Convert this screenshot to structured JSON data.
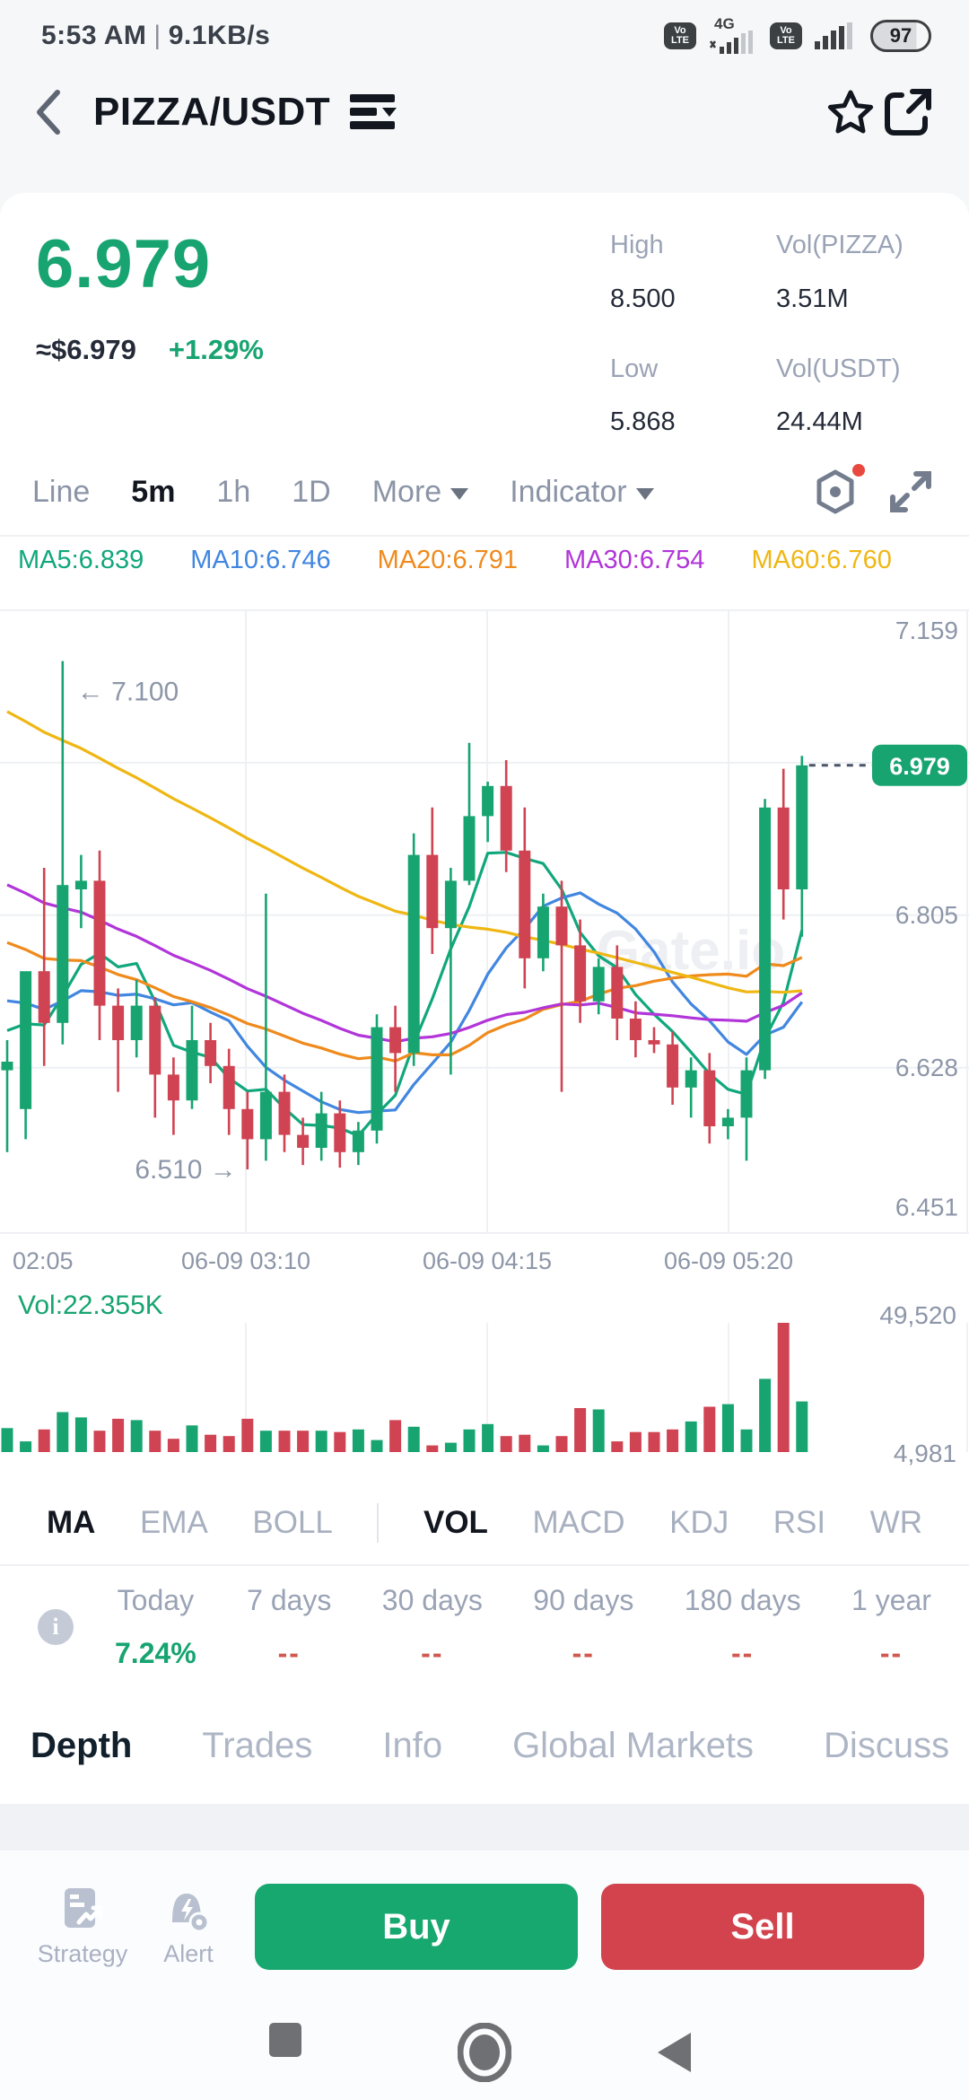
{
  "status_bar": {
    "time": "5:53 AM",
    "separator": "|",
    "net_speed": "9.1KB/s",
    "volte_line1": "Vo",
    "volte_line2": "LTE",
    "net_type": "4G",
    "battery": "97"
  },
  "header": {
    "title": "PIZZA/USDT"
  },
  "ticker": {
    "price": "6.979",
    "fiat": "≈$6.979",
    "change": "+1.29%",
    "high_label": "High",
    "high": "8.500",
    "vol_base_label": "Vol(PIZZA)",
    "vol_base": "3.51M",
    "low_label": "Low",
    "low": "5.868",
    "vol_quote_label": "Vol(USDT)",
    "vol_quote": "24.44M"
  },
  "toolbar": {
    "tabs": [
      "Line",
      "5m",
      "1h",
      "1D"
    ],
    "active_tab": "5m",
    "more_label": "More",
    "indicator_label": "Indicator"
  },
  "ma_row": [
    {
      "label": "MA5:6.839",
      "color": "#11a77c"
    },
    {
      "label": "MA10:6.746",
      "color": "#4186e0"
    },
    {
      "label": "MA20:6.791",
      "color": "#ef8a1c"
    },
    {
      "label": "MA30:6.754",
      "color": "#b135d8"
    },
    {
      "label": "MA60:6.760",
      "color": "#efb714"
    }
  ],
  "chart_data": {
    "type": "candlestick",
    "title": "PIZZA/USDT 5m candles with MA5/10/20/30/60 and volume",
    "y_ticks": [
      {
        "label": "7.159",
        "price": 7.159,
        "dy": 32
      },
      {
        "label": "6.805",
        "price": 6.805,
        "dy": 9
      },
      {
        "label": "6.628",
        "price": 6.628,
        "dy": 9
      },
      {
        "label": "6.451",
        "price": 6.451,
        "dy": -5
      }
    ],
    "grid_prices": [
      7.159,
      6.982,
      6.805,
      6.628
    ],
    "x_ticks": [
      {
        "label": "02:05"
      },
      {
        "label": "06-09 03:10"
      },
      {
        "label": "06-09 04:15"
      },
      {
        "label": "06-09 05:20"
      }
    ],
    "price_range": {
      "top": 7.159,
      "bottom": 6.436
    },
    "last_price": {
      "label": "6.979",
      "price": 6.979
    },
    "annotations": {
      "high": {
        "label": "← 7.100",
        "price": 7.1,
        "candle_index": 3
      },
      "low": {
        "label": "6.510 →",
        "price": 6.51,
        "candle_index": 13
      }
    },
    "watermark": "Gate.io",
    "colors": {
      "up": "#17a471",
      "down": "#cf4352",
      "ma5": "#11a77c",
      "ma10": "#4186e0",
      "ma20": "#ef8a1c",
      "ma30": "#b135d8",
      "ma60": "#efb714"
    },
    "ma_periods": [
      5,
      10,
      20,
      30,
      60
    ],
    "candles": [
      [
        6.625,
        6.66,
        6.53,
        6.635
      ],
      [
        6.58,
        6.7,
        6.545,
        6.74
      ],
      [
        6.74,
        6.86,
        6.63,
        6.68
      ],
      [
        6.68,
        7.1,
        6.655,
        6.84
      ],
      [
        6.835,
        6.875,
        6.79,
        6.845
      ],
      [
        6.845,
        6.88,
        6.66,
        6.7
      ],
      [
        6.7,
        6.72,
        6.6,
        6.66
      ],
      [
        6.66,
        6.73,
        6.64,
        6.7
      ],
      [
        6.7,
        6.71,
        6.57,
        6.62
      ],
      [
        6.62,
        6.64,
        6.55,
        6.59
      ],
      [
        6.59,
        6.7,
        6.58,
        6.66
      ],
      [
        6.66,
        6.68,
        6.61,
        6.63
      ],
      [
        6.63,
        6.65,
        6.55,
        6.58
      ],
      [
        6.58,
        6.6,
        6.51,
        6.545
      ],
      [
        6.545,
        6.83,
        6.52,
        6.6
      ],
      [
        6.6,
        6.62,
        6.53,
        6.55
      ],
      [
        6.55,
        6.57,
        6.515,
        6.535
      ],
      [
        6.535,
        6.6,
        6.52,
        6.575
      ],
      [
        6.575,
        6.59,
        6.512,
        6.53
      ],
      [
        6.53,
        6.565,
        6.515,
        6.555
      ],
      [
        6.555,
        6.69,
        6.54,
        6.675
      ],
      [
        6.675,
        6.7,
        6.6,
        6.645
      ],
      [
        6.645,
        6.9,
        6.63,
        6.875
      ],
      [
        6.875,
        6.93,
        6.76,
        6.79
      ],
      [
        6.79,
        6.86,
        6.62,
        6.845
      ],
      [
        6.845,
        7.005,
        6.84,
        6.92
      ],
      [
        6.92,
        6.96,
        6.89,
        6.955
      ],
      [
        6.955,
        6.985,
        6.855,
        6.88
      ],
      [
        6.88,
        6.93,
        6.72,
        6.755
      ],
      [
        6.755,
        6.83,
        6.74,
        6.815
      ],
      [
        6.815,
        6.845,
        6.6,
        6.77
      ],
      [
        6.77,
        6.8,
        6.68,
        6.705
      ],
      [
        6.705,
        6.755,
        6.69,
        6.745
      ],
      [
        6.745,
        6.77,
        6.66,
        6.685
      ],
      [
        6.685,
        6.705,
        6.64,
        6.66
      ],
      [
        6.66,
        6.675,
        6.645,
        6.655
      ],
      [
        6.655,
        6.67,
        6.585,
        6.605
      ],
      [
        6.605,
        6.64,
        6.57,
        6.625
      ],
      [
        6.625,
        6.645,
        6.54,
        6.56
      ],
      [
        6.56,
        6.58,
        6.545,
        6.57
      ],
      [
        6.57,
        6.64,
        6.52,
        6.625
      ],
      [
        6.625,
        6.94,
        6.615,
        6.93
      ],
      [
        6.93,
        6.975,
        6.8,
        6.835
      ],
      [
        6.835,
        6.99,
        6.78,
        6.979
      ]
    ],
    "volume": {
      "label": "Vol:22.355K",
      "axis_max": "49,520",
      "axis_min": "4,981",
      "max_value": 49520,
      "rel": [
        0.18,
        0.08,
        0.17,
        0.3,
        0.26,
        0.16,
        0.25,
        0.24,
        0.16,
        0.1,
        0.2,
        0.13,
        0.12,
        0.25,
        0.16,
        0.16,
        0.16,
        0.16,
        0.15,
        0.17,
        0.09,
        0.24,
        0.19,
        0.05,
        0.07,
        0.17,
        0.21,
        0.12,
        0.13,
        0.05,
        0.12,
        0.33,
        0.32,
        0.08,
        0.15,
        0.15,
        0.17,
        0.23,
        0.34,
        0.36,
        0.17,
        0.55,
        0.97,
        0.38
      ]
    }
  },
  "indicator_tabs": {
    "left": [
      "MA",
      "EMA",
      "BOLL"
    ],
    "right": [
      "VOL",
      "MACD",
      "KDJ",
      "RSI",
      "WR"
    ],
    "active_left": "MA",
    "active_right": "VOL"
  },
  "performance": {
    "cols": [
      {
        "label": "Today",
        "value": "7.24%"
      },
      {
        "label": "7 days",
        "value": "--"
      },
      {
        "label": "30 days",
        "value": "--"
      },
      {
        "label": "90 days",
        "value": "--"
      },
      {
        "label": "180 days",
        "value": "--"
      },
      {
        "label": "1 year",
        "value": "--"
      }
    ]
  },
  "bottom_tabs": [
    "Depth",
    "Trades",
    "Info",
    "Global Markets",
    "Discuss"
  ],
  "actions": {
    "strategy_label": "Strategy",
    "alert_label": "Alert",
    "buy_label": "Buy",
    "sell_label": "Sell"
  }
}
